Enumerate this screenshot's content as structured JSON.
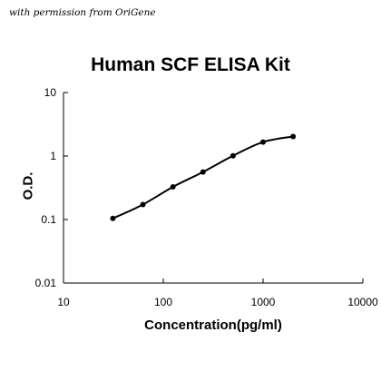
{
  "credit": "with permission from OriGene",
  "chart_data": {
    "type": "line",
    "title": "Human SCF ELISA Kit",
    "xlabel": "Concentration(pg/ml)",
    "ylabel": "O.D.",
    "xscale": "log",
    "yscale": "log",
    "xlim": [
      10,
      10000
    ],
    "ylim": [
      0.01,
      10
    ],
    "xticks": [
      10,
      100,
      1000,
      10000
    ],
    "xtick_labels": [
      "10",
      "100",
      "1000",
      "10000"
    ],
    "yticks": [
      0.01,
      0.1,
      1,
      10
    ],
    "ytick_labels": [
      "0.01",
      "0.1",
      "1",
      "10"
    ],
    "grid": false,
    "legend": "none",
    "series": [
      {
        "x": [
          31.25,
          62.5,
          125,
          250,
          500,
          1000,
          2000
        ],
        "y": [
          0.104,
          0.172,
          0.327,
          0.56,
          1.01,
          1.66,
          2.03
        ],
        "color": "#000000"
      }
    ]
  }
}
